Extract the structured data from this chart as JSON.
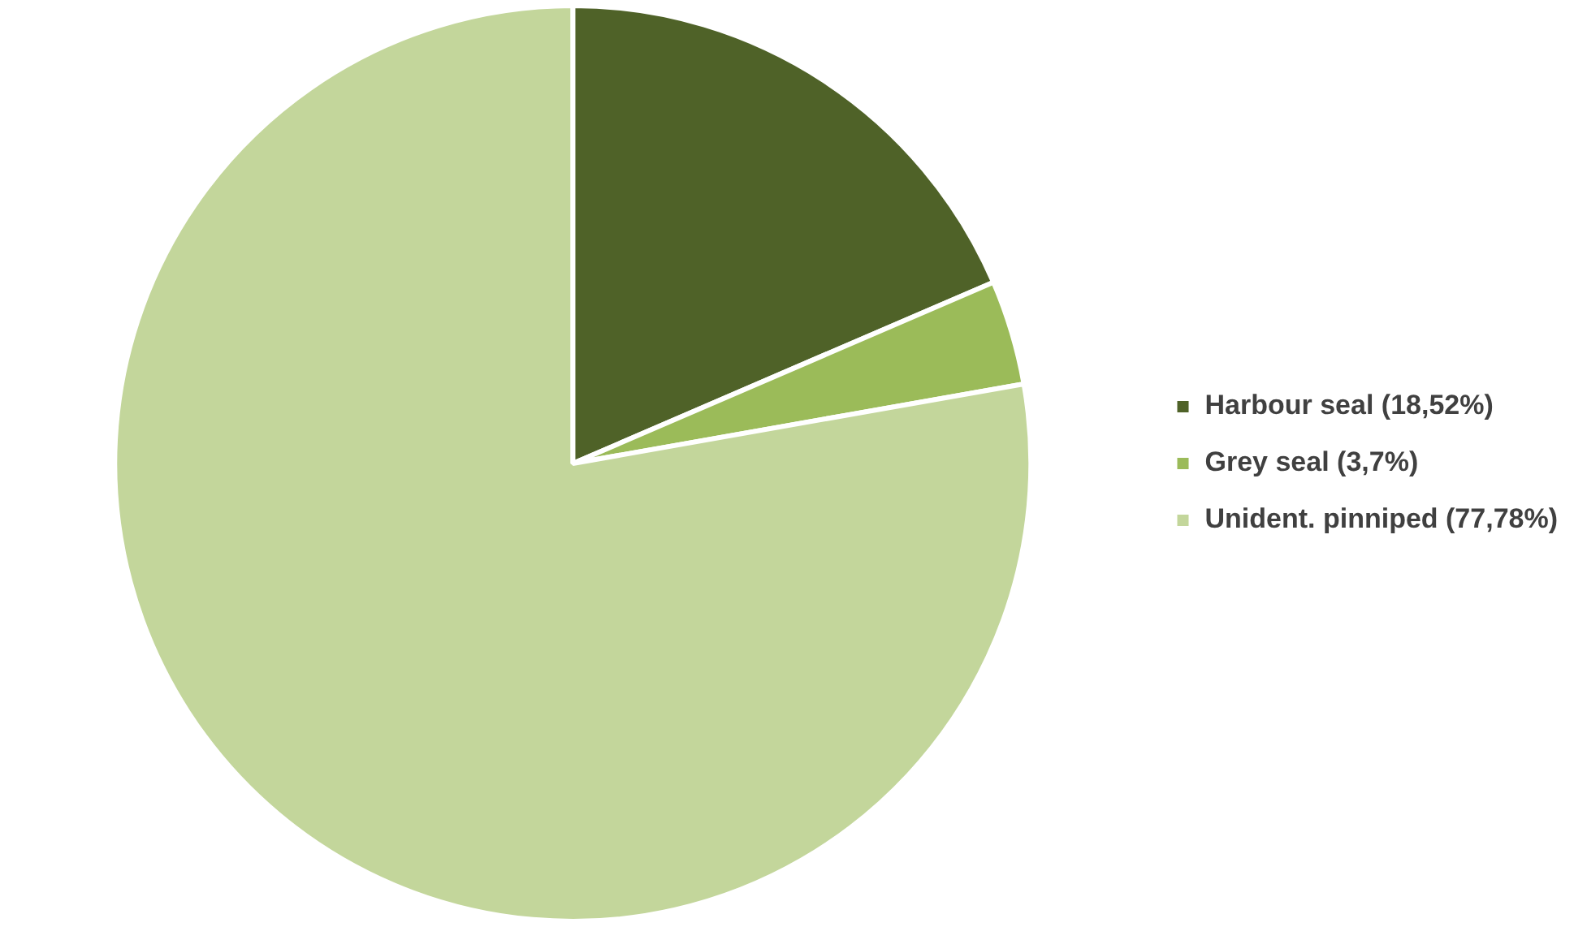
{
  "chart_data": {
    "type": "pie",
    "categories": [
      "Harbour seal (18,52%)",
      "Grey seal (3,7%)",
      "Unident. pinniped (77,78%)"
    ],
    "values": [
      18.52,
      3.7,
      77.78
    ],
    "colors": [
      "#4f6228",
      "#9bbb59",
      "#c3d69b"
    ],
    "legend": "right"
  }
}
